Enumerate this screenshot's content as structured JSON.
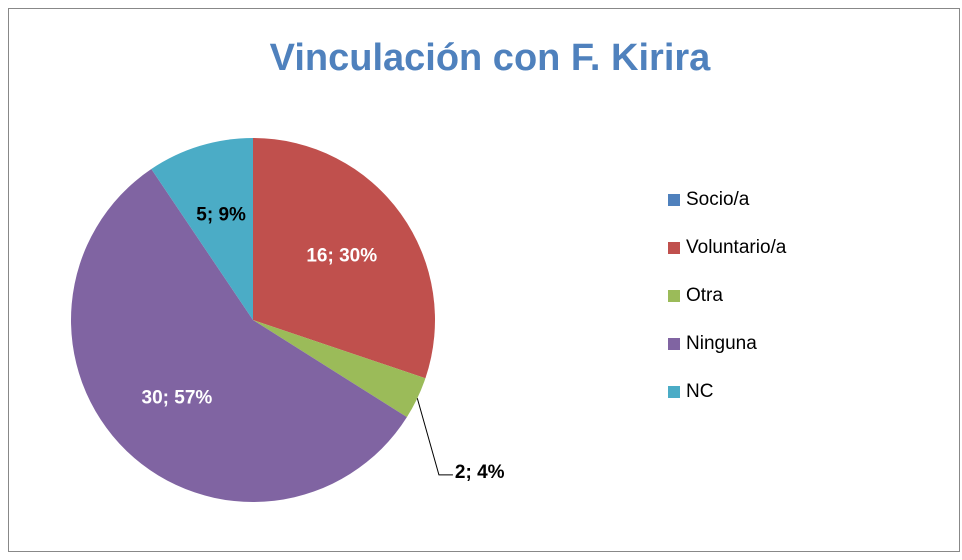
{
  "chart_data": {
    "type": "pie",
    "title": "Vinculación con F. Kirira",
    "categories": [
      "Socio/a",
      "Voluntario/a",
      "Otra",
      "Ninguna",
      "NC"
    ],
    "values": [
      0,
      16,
      2,
      30,
      5
    ],
    "value_labels": [
      null,
      "16; 30%",
      "2; 4%",
      "30; 57%",
      "5; 9%"
    ],
    "colors": [
      "#4f81bd",
      "#c0504d",
      "#9bbb59",
      "#8064a2",
      "#4bacc6"
    ],
    "legend": "right"
  }
}
